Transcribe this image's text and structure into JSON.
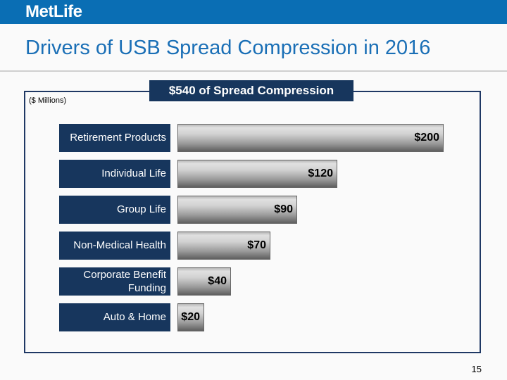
{
  "header": {
    "logo_text": "MetLife",
    "brand_color": "#0a6eb4"
  },
  "slide": {
    "title": "Drivers of USB Spread Compression in 2016",
    "banner": "$540 of Spread Compression",
    "units_note": "($ Millions)",
    "page_number": "15"
  },
  "chart_data": {
    "type": "bar",
    "orientation": "horizontal",
    "categories": [
      "Retirement Products",
      "Individual Life",
      "Group Life",
      "Non-Medical Health",
      "Corporate Benefit Funding",
      "Auto & Home"
    ],
    "values": [
      200,
      120,
      90,
      70,
      40,
      20
    ],
    "data_labels": [
      "$200",
      "$120",
      "$90",
      "$70",
      "$40",
      "$20"
    ],
    "title": "$540 of Spread Compression",
    "unit": "($ Millions)",
    "xlim": [
      0,
      200
    ],
    "grid": false,
    "legend": "none",
    "bar_color": "#a0a0a0",
    "label_box_color": "#17365d"
  }
}
